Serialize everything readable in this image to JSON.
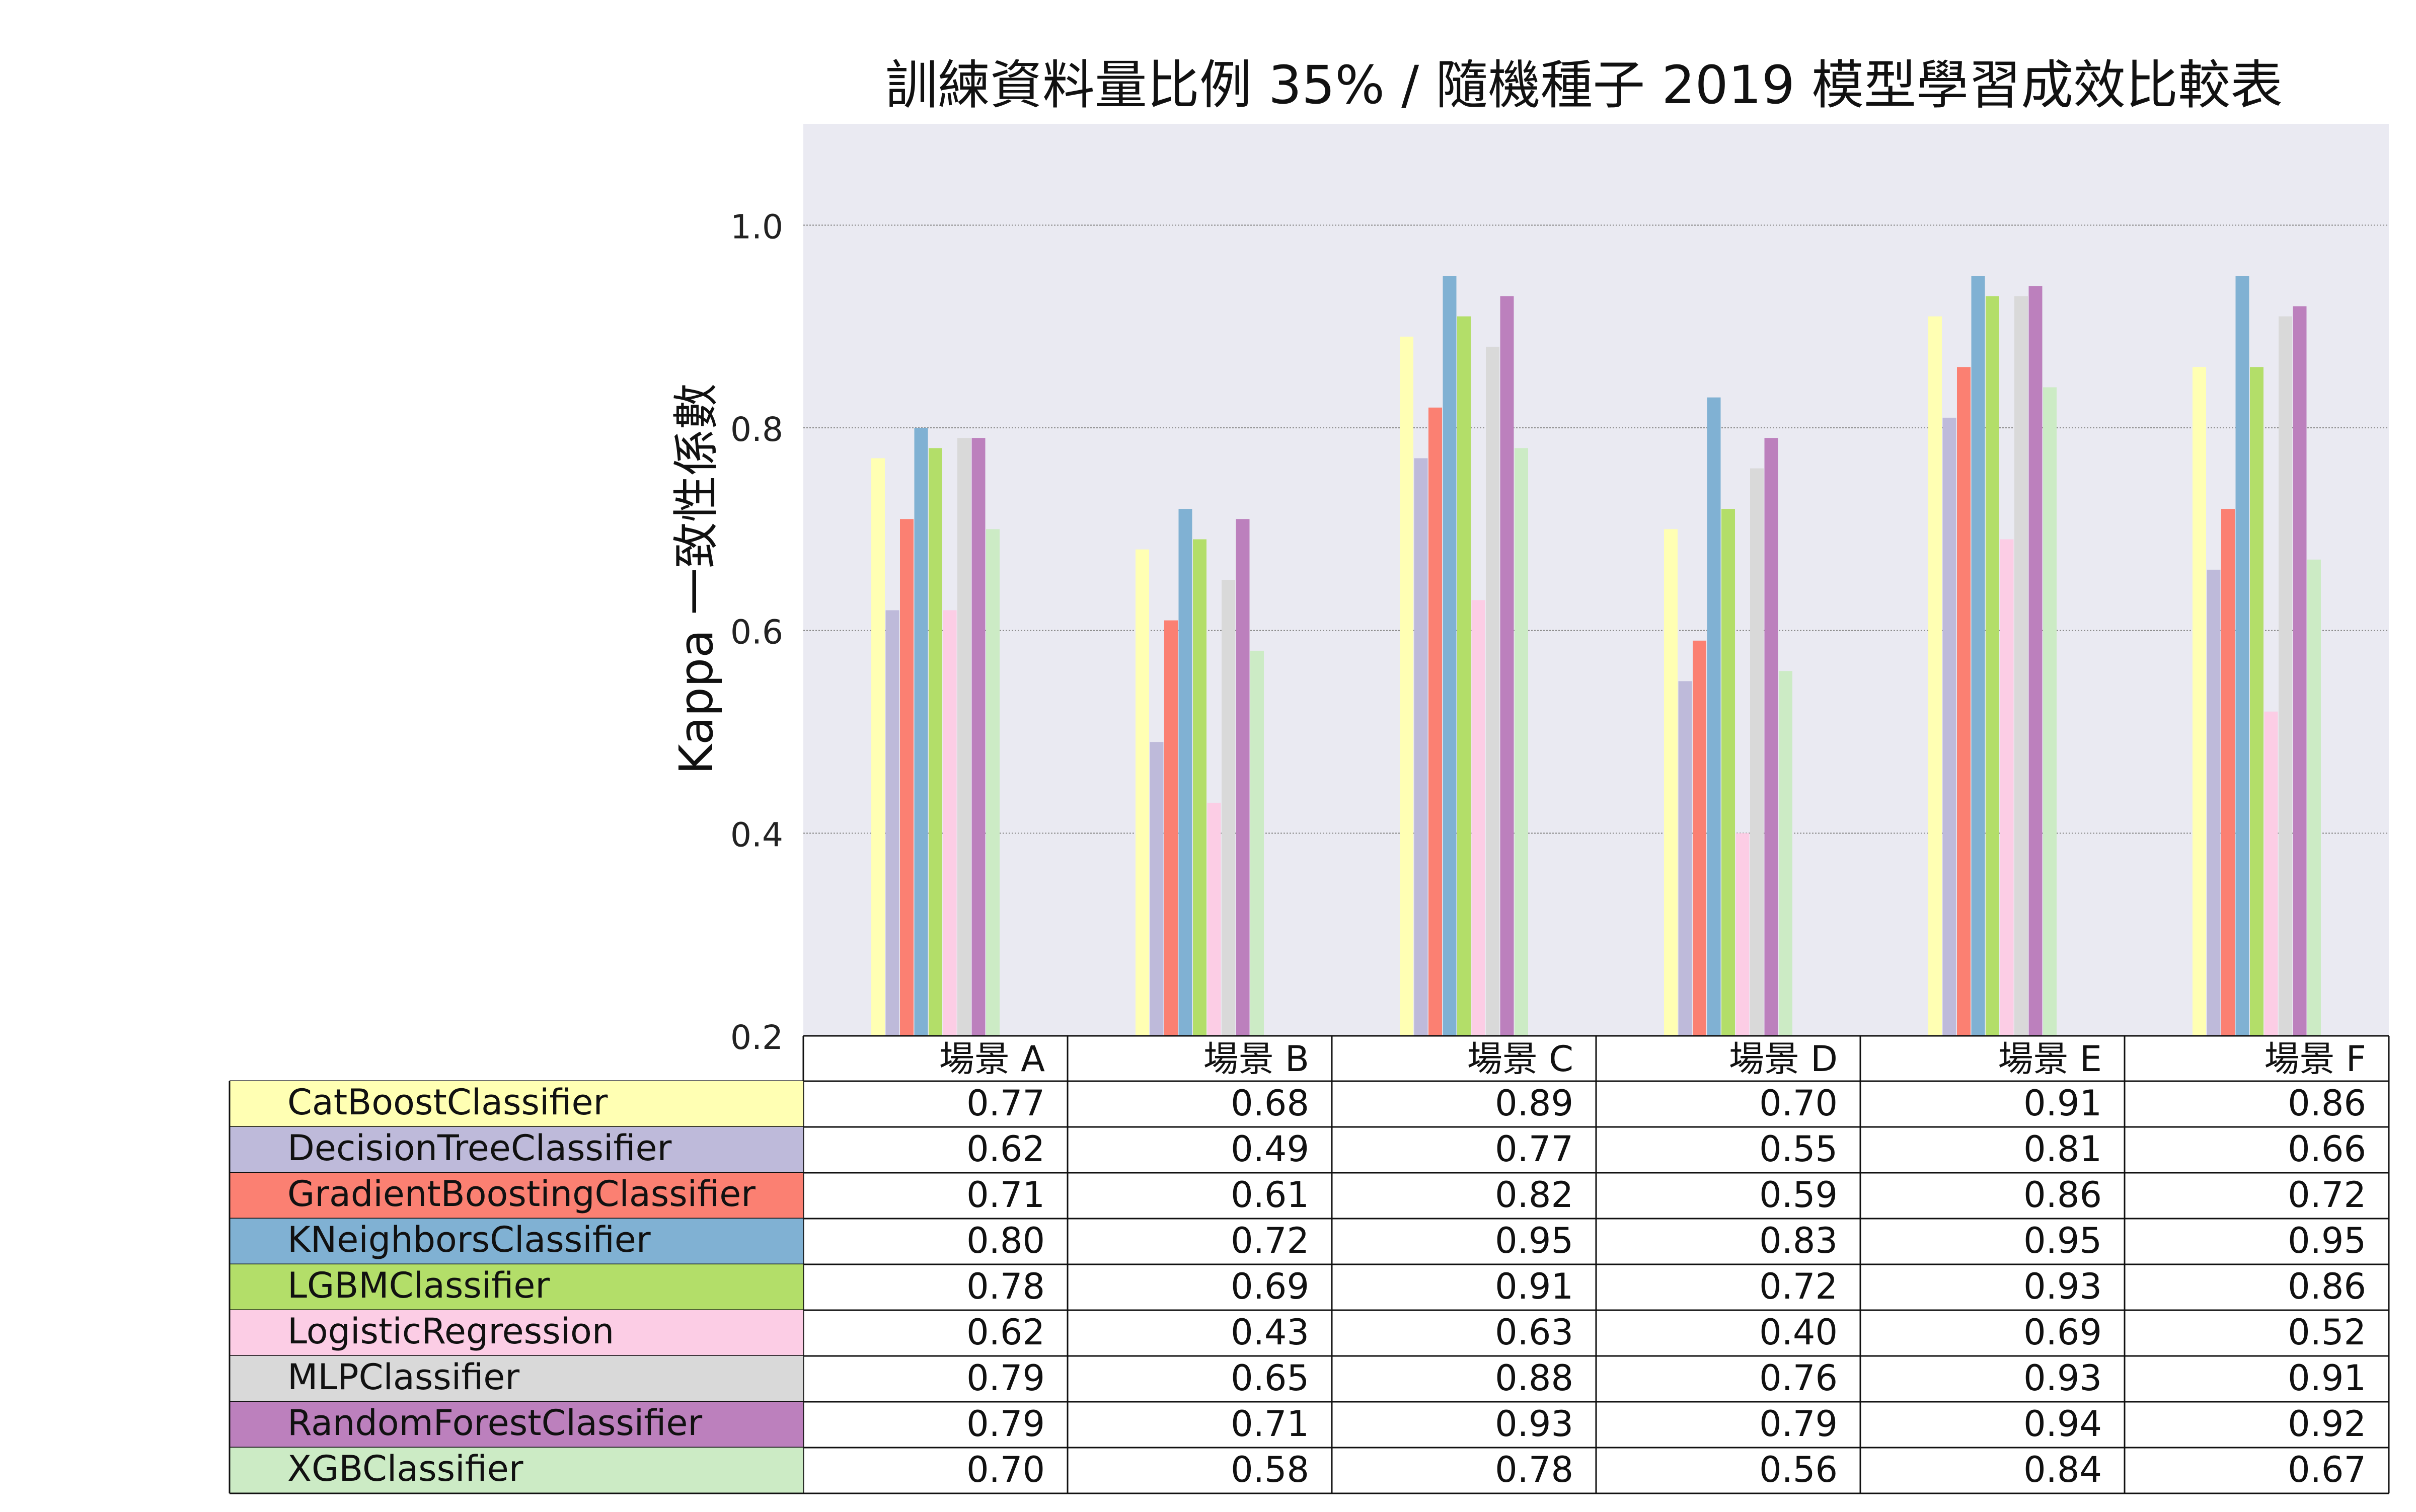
{
  "chart_data": {
    "type": "bar",
    "title": "訓練資料量比例 35% / 隨機種子 2019 模型學習成效比較表",
    "ylabel": "Kappa 一致性係數",
    "xlabel": "",
    "ylim": [
      0.2,
      1.1
    ],
    "yticks": [
      "0.2",
      "0.4",
      "0.6",
      "0.8",
      "1.0"
    ],
    "grid": true,
    "categories": [
      "場景 A",
      "場景 B",
      "場景 C",
      "場景 D",
      "場景 E",
      "場景 F"
    ],
    "series": [
      {
        "name": "CatBoostClassifier",
        "color": "#ffffb3",
        "values": [
          0.77,
          0.68,
          0.89,
          0.7,
          0.91,
          0.86
        ],
        "labels": [
          "0.77",
          "0.68",
          "0.89",
          "0.70",
          "0.91",
          "0.86"
        ]
      },
      {
        "name": "DecisionTreeClassifier",
        "color": "#bebada",
        "values": [
          0.62,
          0.49,
          0.77,
          0.55,
          0.81,
          0.66
        ],
        "labels": [
          "0.62",
          "0.49",
          "0.77",
          "0.55",
          "0.81",
          "0.66"
        ]
      },
      {
        "name": "GradientBoostingClassifier",
        "color": "#fb8072",
        "values": [
          0.71,
          0.61,
          0.82,
          0.59,
          0.86,
          0.72
        ],
        "labels": [
          "0.71",
          "0.61",
          "0.82",
          "0.59",
          "0.86",
          "0.72"
        ]
      },
      {
        "name": "KNeighborsClassifier",
        "color": "#80b1d3",
        "values": [
          0.8,
          0.72,
          0.95,
          0.83,
          0.95,
          0.95
        ],
        "labels": [
          "0.80",
          "0.72",
          "0.95",
          "0.83",
          "0.95",
          "0.95"
        ]
      },
      {
        "name": "LGBMClassifier",
        "color": "#b3de69",
        "values": [
          0.78,
          0.69,
          0.91,
          0.72,
          0.93,
          0.86
        ],
        "labels": [
          "0.78",
          "0.69",
          "0.91",
          "0.72",
          "0.93",
          "0.86"
        ]
      },
      {
        "name": "LogisticRegression",
        "color": "#fccde5",
        "values": [
          0.62,
          0.43,
          0.63,
          0.4,
          0.69,
          0.52
        ],
        "labels": [
          "0.62",
          "0.43",
          "0.63",
          "0.40",
          "0.69",
          "0.52"
        ]
      },
      {
        "name": "MLPClassifier",
        "color": "#d9d9d9",
        "values": [
          0.79,
          0.65,
          0.88,
          0.76,
          0.93,
          0.91
        ],
        "labels": [
          "0.79",
          "0.65",
          "0.88",
          "0.76",
          "0.93",
          "0.91"
        ]
      },
      {
        "name": "RandomForestClassifier",
        "color": "#bc80bd",
        "values": [
          0.79,
          0.71,
          0.93,
          0.79,
          0.94,
          0.92
        ],
        "labels": [
          "0.79",
          "0.71",
          "0.93",
          "0.79",
          "0.94",
          "0.92"
        ]
      },
      {
        "name": "XGBClassifier",
        "color": "#ccebc5",
        "values": [
          0.7,
          0.58,
          0.78,
          0.56,
          0.84,
          0.67
        ],
        "labels": [
          "0.70",
          "0.58",
          "0.78",
          "0.56",
          "0.84",
          "0.67"
        ]
      }
    ],
    "legend_placement": "table-below",
    "plot_background": "#eaeaf2",
    "gridline_color": "#888888"
  }
}
